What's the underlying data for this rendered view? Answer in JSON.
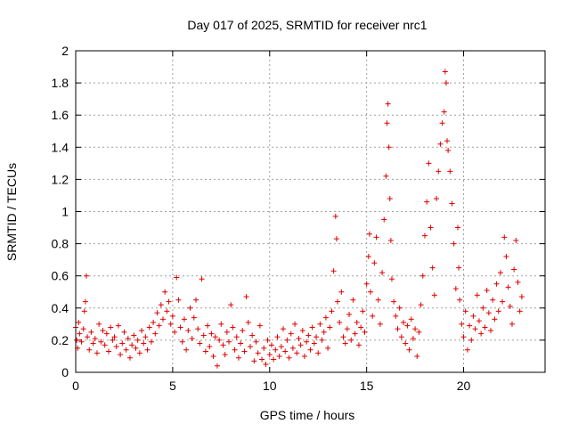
{
  "chart_data": {
    "type": "scatter",
    "title": "Day 017 of 2025, SRMTID for receiver nrc1",
    "xlabel": "GPS time / hours",
    "ylabel": "SRMTID / TECUs",
    "xlim": [
      0,
      24.2
    ],
    "ylim": [
      0,
      2
    ],
    "x_ticks": [
      0,
      5,
      10,
      15,
      20
    ],
    "y_ticks": [
      0,
      0.2,
      0.4,
      0.6,
      0.8,
      1,
      1.2,
      1.4,
      1.6,
      1.8,
      2
    ],
    "x_tick_labels": [
      "0",
      "5",
      "10",
      "15",
      "20"
    ],
    "y_tick_labels": [
      "0",
      "0.2",
      "0.4",
      "0.6",
      "0.8",
      "1",
      "1.2",
      "1.4",
      "1.6",
      "1.8",
      "2"
    ],
    "grid": true,
    "marker": "plus",
    "marker_color": "#e00000",
    "series": [
      {
        "name": "nrc1",
        "points": [
          [
            0.0,
            0.28
          ],
          [
            0.05,
            0.2
          ],
          [
            0.1,
            0.15
          ],
          [
            0.15,
            0.31
          ],
          [
            0.2,
            0.24
          ],
          [
            0.3,
            0.19
          ],
          [
            0.4,
            0.27
          ],
          [
            0.45,
            0.38
          ],
          [
            0.5,
            0.44
          ],
          [
            0.55,
            0.6
          ],
          [
            0.6,
            0.22
          ],
          [
            0.7,
            0.14
          ],
          [
            0.8,
            0.25
          ],
          [
            0.9,
            0.18
          ],
          [
            1.0,
            0.21
          ],
          [
            1.1,
            0.12
          ],
          [
            1.2,
            0.3
          ],
          [
            1.3,
            0.19
          ],
          [
            1.4,
            0.26
          ],
          [
            1.5,
            0.17
          ],
          [
            1.6,
            0.24
          ],
          [
            1.7,
            0.13
          ],
          [
            1.8,
            0.28
          ],
          [
            1.9,
            0.2
          ],
          [
            2.0,
            0.22
          ],
          [
            2.1,
            0.16
          ],
          [
            2.2,
            0.29
          ],
          [
            2.3,
            0.11
          ],
          [
            2.4,
            0.18
          ],
          [
            2.5,
            0.25
          ],
          [
            2.6,
            0.14
          ],
          [
            2.7,
            0.21
          ],
          [
            2.8,
            0.09
          ],
          [
            2.9,
            0.17
          ],
          [
            3.0,
            0.23
          ],
          [
            3.1,
            0.15
          ],
          [
            3.2,
            0.2
          ],
          [
            3.3,
            0.12
          ],
          [
            3.4,
            0.26
          ],
          [
            3.5,
            0.18
          ],
          [
            3.6,
            0.22
          ],
          [
            3.7,
            0.14
          ],
          [
            3.8,
            0.28
          ],
          [
            3.9,
            0.19
          ],
          [
            4.0,
            0.31
          ],
          [
            4.1,
            0.24
          ],
          [
            4.2,
            0.37
          ],
          [
            4.3,
            0.29
          ],
          [
            4.4,
            0.42
          ],
          [
            4.5,
            0.33
          ],
          [
            4.6,
            0.5
          ],
          [
            4.7,
            0.38
          ],
          [
            4.8,
            0.44
          ],
          [
            4.9,
            0.3
          ],
          [
            5.0,
            0.35
          ],
          [
            5.1,
            0.25
          ],
          [
            5.2,
            0.59
          ],
          [
            5.3,
            0.45
          ],
          [
            5.4,
            0.28
          ],
          [
            5.5,
            0.19
          ],
          [
            5.6,
            0.33
          ],
          [
            5.7,
            0.14
          ],
          [
            5.8,
            0.26
          ],
          [
            5.9,
            0.4
          ],
          [
            6.0,
            0.21
          ],
          [
            6.1,
            0.34
          ],
          [
            6.2,
            0.45
          ],
          [
            6.3,
            0.27
          ],
          [
            6.4,
            0.18
          ],
          [
            6.5,
            0.58
          ],
          [
            6.6,
            0.23
          ],
          [
            6.7,
            0.13
          ],
          [
            6.8,
            0.29
          ],
          [
            6.9,
            0.16
          ],
          [
            7.0,
            0.24
          ],
          [
            7.1,
            0.1
          ],
          [
            7.2,
            0.22
          ],
          [
            7.3,
            0.04
          ],
          [
            7.4,
            0.2
          ],
          [
            7.5,
            0.3
          ],
          [
            7.6,
            0.17
          ],
          [
            7.7,
            0.11
          ],
          [
            7.8,
            0.25
          ],
          [
            7.9,
            0.19
          ],
          [
            8.0,
            0.42
          ],
          [
            8.1,
            0.28
          ],
          [
            8.2,
            0.14
          ],
          [
            8.3,
            0.22
          ],
          [
            8.4,
            0.09
          ],
          [
            8.5,
            0.18
          ],
          [
            8.6,
            0.26
          ],
          [
            8.7,
            0.13
          ],
          [
            8.8,
            0.47
          ],
          [
            8.9,
            0.31
          ],
          [
            9.0,
            0.16
          ],
          [
            9.1,
            0.23
          ],
          [
            9.2,
            0.07
          ],
          [
            9.3,
            0.19
          ],
          [
            9.4,
            0.12
          ],
          [
            9.5,
            0.29
          ],
          [
            9.6,
            0.08
          ],
          [
            9.7,
            0.15
          ],
          [
            9.8,
            0.05
          ],
          [
            9.9,
            0.2
          ],
          [
            10.0,
            0.11
          ],
          [
            10.1,
            0.17
          ],
          [
            10.2,
            0.08
          ],
          [
            10.3,
            0.14
          ],
          [
            10.4,
            0.22
          ],
          [
            10.5,
            0.1
          ],
          [
            10.6,
            0.16
          ],
          [
            10.7,
            0.27
          ],
          [
            10.8,
            0.13
          ],
          [
            10.9,
            0.2
          ],
          [
            11.0,
            0.09
          ],
          [
            11.1,
            0.24
          ],
          [
            11.2,
            0.15
          ],
          [
            11.3,
            0.3
          ],
          [
            11.4,
            0.12
          ],
          [
            11.5,
            0.21
          ],
          [
            11.6,
            0.17
          ],
          [
            11.7,
            0.26
          ],
          [
            11.8,
            0.1
          ],
          [
            11.9,
            0.19
          ],
          [
            12.0,
            0.23
          ],
          [
            12.1,
            0.14
          ],
          [
            12.2,
            0.28
          ],
          [
            12.3,
            0.18
          ],
          [
            12.4,
            0.22
          ],
          [
            12.5,
            0.12
          ],
          [
            12.6,
            0.3
          ],
          [
            12.7,
            0.2
          ],
          [
            12.8,
            0.25
          ],
          [
            12.9,
            0.34
          ],
          [
            13.0,
            0.15
          ],
          [
            13.1,
            0.28
          ],
          [
            13.2,
            0.38
          ],
          [
            13.3,
            0.63
          ],
          [
            13.4,
            0.97
          ],
          [
            13.45,
            0.83
          ],
          [
            13.5,
            0.44
          ],
          [
            13.6,
            0.31
          ],
          [
            13.7,
            0.5
          ],
          [
            13.8,
            0.22
          ],
          [
            13.9,
            0.18
          ],
          [
            14.0,
            0.27
          ],
          [
            14.1,
            0.36
          ],
          [
            14.2,
            0.2
          ],
          [
            14.3,
            0.45
          ],
          [
            14.4,
            0.24
          ],
          [
            14.5,
            0.31
          ],
          [
            14.6,
            0.17
          ],
          [
            14.7,
            0.28
          ],
          [
            14.8,
            0.38
          ],
          [
            14.9,
            0.25
          ],
          [
            15.0,
            0.55
          ],
          [
            15.1,
            0.72
          ],
          [
            15.15,
            0.86
          ],
          [
            15.2,
            0.5
          ],
          [
            15.3,
            0.35
          ],
          [
            15.4,
            0.68
          ],
          [
            15.5,
            0.84
          ],
          [
            15.6,
            0.45
          ],
          [
            15.7,
            0.3
          ],
          [
            15.8,
            0.62
          ],
          [
            15.9,
            0.95
          ],
          [
            16.0,
            1.22
          ],
          [
            16.05,
            1.55
          ],
          [
            16.1,
            1.67
          ],
          [
            16.15,
            1.4
          ],
          [
            16.2,
            1.08
          ],
          [
            16.25,
            0.82
          ],
          [
            16.3,
            0.58
          ],
          [
            16.4,
            0.44
          ],
          [
            16.5,
            0.35
          ],
          [
            16.6,
            0.27
          ],
          [
            16.7,
            0.4
          ],
          [
            16.8,
            0.22
          ],
          [
            16.9,
            0.31
          ],
          [
            17.0,
            0.18
          ],
          [
            17.1,
            0.29
          ],
          [
            17.2,
            0.14
          ],
          [
            17.3,
            0.33
          ],
          [
            17.4,
            0.21
          ],
          [
            17.5,
            0.27
          ],
          [
            17.6,
            0.1
          ],
          [
            17.7,
            0.25
          ],
          [
            17.8,
            0.42
          ],
          [
            17.9,
            0.6
          ],
          [
            18.0,
            0.85
          ],
          [
            18.1,
            1.06
          ],
          [
            18.2,
            1.3
          ],
          [
            18.3,
            0.9
          ],
          [
            18.4,
            0.65
          ],
          [
            18.5,
            0.48
          ],
          [
            18.6,
            1.08
          ],
          [
            18.7,
            1.25
          ],
          [
            18.8,
            1.42
          ],
          [
            18.9,
            1.55
          ],
          [
            19.0,
            1.62
          ],
          [
            19.05,
            1.87
          ],
          [
            19.1,
            1.8
          ],
          [
            19.15,
            1.44
          ],
          [
            19.2,
            1.38
          ],
          [
            19.3,
            1.25
          ],
          [
            19.4,
            1.05
          ],
          [
            19.5,
            0.8
          ],
          [
            19.6,
            0.52
          ],
          [
            19.7,
            0.9
          ],
          [
            19.75,
            0.65
          ],
          [
            19.8,
            0.45
          ],
          [
            19.9,
            0.3
          ],
          [
            20.0,
            0.22
          ],
          [
            20.1,
            0.38
          ],
          [
            20.2,
            0.14
          ],
          [
            20.3,
            0.29
          ],
          [
            20.4,
            0.2
          ],
          [
            20.5,
            0.35
          ],
          [
            20.6,
            0.27
          ],
          [
            20.7,
            0.48
          ],
          [
            20.8,
            0.32
          ],
          [
            20.9,
            0.24
          ],
          [
            21.0,
            0.4
          ],
          [
            21.1,
            0.28
          ],
          [
            21.2,
            0.51
          ],
          [
            21.3,
            0.37
          ],
          [
            21.4,
            0.26
          ],
          [
            21.5,
            0.45
          ],
          [
            21.6,
            0.33
          ],
          [
            21.7,
            0.55
          ],
          [
            21.8,
            0.38
          ],
          [
            21.9,
            0.62
          ],
          [
            22.0,
            0.44
          ],
          [
            22.1,
            0.84
          ],
          [
            22.2,
            0.72
          ],
          [
            22.3,
            0.53
          ],
          [
            22.4,
            0.41
          ],
          [
            22.5,
            0.3
          ],
          [
            22.6,
            0.64
          ],
          [
            22.7,
            0.82
          ],
          [
            22.8,
            0.56
          ],
          [
            22.9,
            0.38
          ],
          [
            23.0,
            0.47
          ]
        ]
      }
    ]
  }
}
